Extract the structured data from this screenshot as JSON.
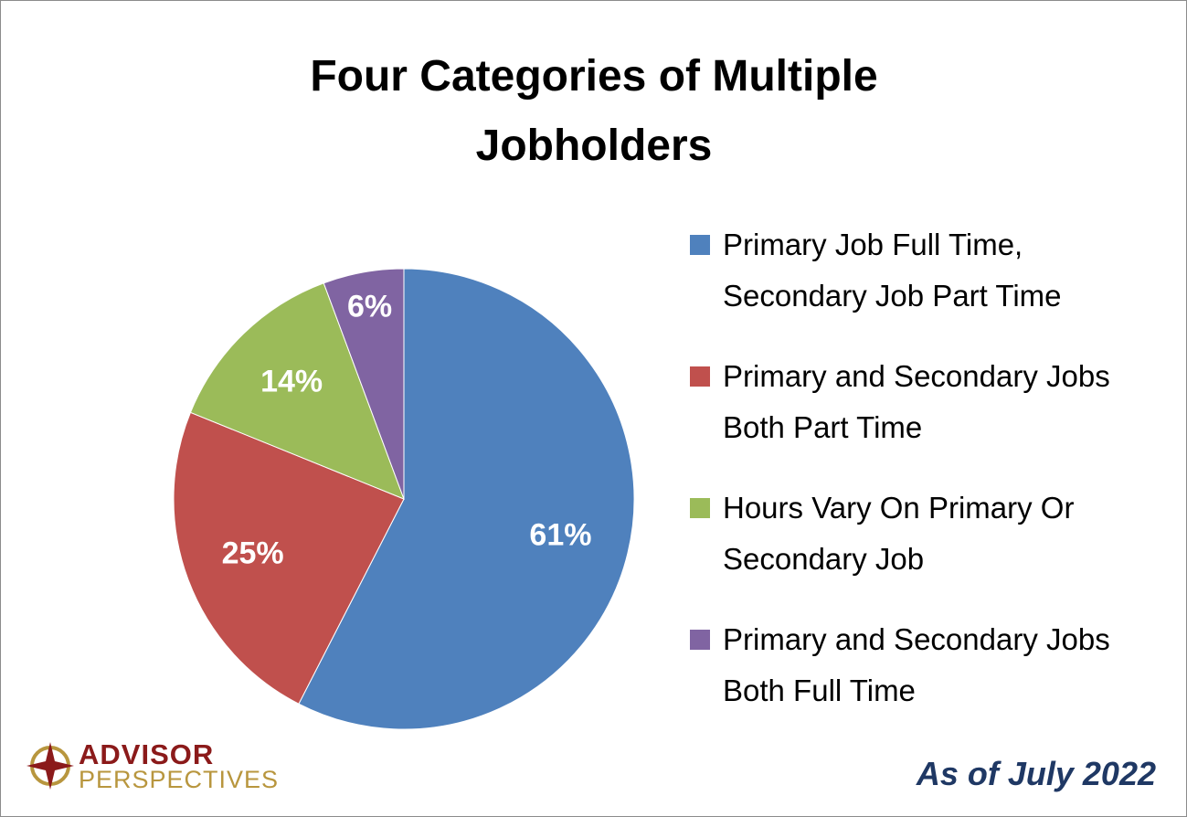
{
  "chart_data": {
    "type": "pie",
    "title": "Four Categories of Multiple Jobholders",
    "categories": [
      "Primary Job Full Time, Secondary Job Part Time",
      "Primary and Secondary Jobs Both Part Time",
      "Hours Vary On Primary Or Secondary Job",
      "Primary and Secondary Jobs Both Full Time"
    ],
    "values": [
      61,
      25,
      14,
      6
    ],
    "value_labels": [
      "61%",
      "25%",
      "14%",
      "6%"
    ],
    "colors": [
      "#4f81bd",
      "#c0504d",
      "#9bbb59",
      "#8064a2"
    ],
    "legend": "right",
    "annotation": "As of July 2022"
  },
  "logo": {
    "line1": "ADVISOR",
    "line2": "PERSPECTIVES"
  }
}
